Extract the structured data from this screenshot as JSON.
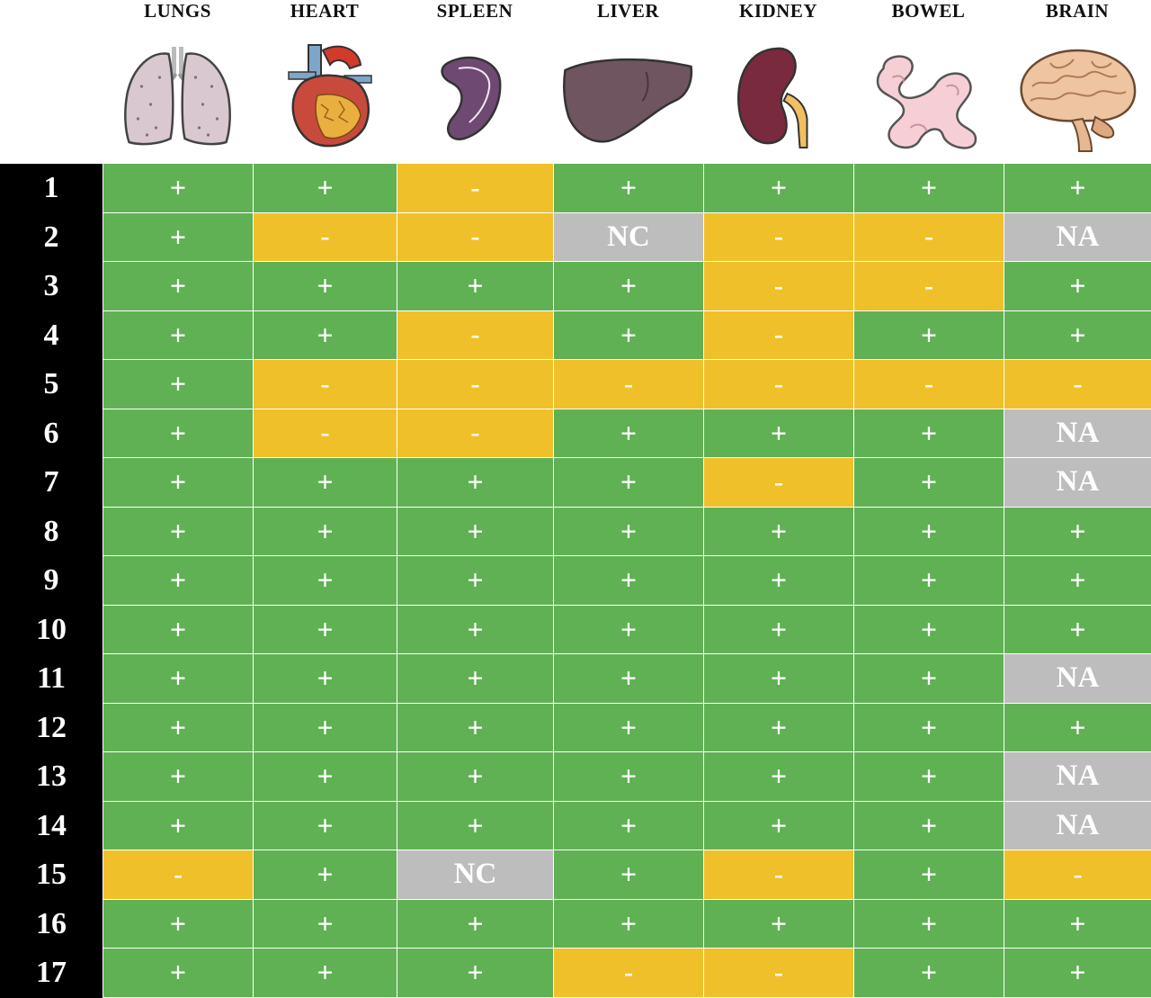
{
  "columns": [
    {
      "name": "LUNGS",
      "icon": "lungs-icon"
    },
    {
      "name": "HEART",
      "icon": "heart-icon"
    },
    {
      "name": "SPLEEN",
      "icon": "spleen-icon"
    },
    {
      "name": "LIVER",
      "icon": "liver-icon"
    },
    {
      "name": "KIDNEY",
      "icon": "kidney-icon"
    },
    {
      "name": "BOWEL",
      "icon": "bowel-icon"
    },
    {
      "name": "BRAIN",
      "icon": "brain-icon"
    }
  ],
  "colors": {
    "positive": "#5fb153",
    "negative": "#f0c02a",
    "not_available": "#bdbdbd",
    "row_label_bg": "#000000"
  },
  "rows": [
    {
      "id": "1",
      "values": [
        "+",
        "+",
        "-",
        "+",
        "+",
        "+",
        "+"
      ]
    },
    {
      "id": "2",
      "values": [
        "+",
        "-",
        "-",
        "NC",
        "-",
        "-",
        "NA"
      ]
    },
    {
      "id": "3",
      "values": [
        "+",
        "+",
        "+",
        "+",
        "-",
        "-",
        "+"
      ]
    },
    {
      "id": "4",
      "values": [
        "+",
        "+",
        "-",
        "+",
        "-",
        "+",
        "+"
      ]
    },
    {
      "id": "5",
      "values": [
        "+",
        "-",
        "-",
        "-",
        "-",
        "-",
        "-"
      ]
    },
    {
      "id": "6",
      "values": [
        "+",
        "-",
        "-",
        "+",
        "+",
        "+",
        "NA"
      ]
    },
    {
      "id": "7",
      "values": [
        "+",
        "+",
        "+",
        "+",
        "-",
        "+",
        "NA"
      ]
    },
    {
      "id": "8",
      "values": [
        "+",
        "+",
        "+",
        "+",
        "+",
        "+",
        "+"
      ]
    },
    {
      "id": "9",
      "values": [
        "+",
        "+",
        "+",
        "+",
        "+",
        "+",
        "+"
      ]
    },
    {
      "id": "10",
      "values": [
        "+",
        "+",
        "+",
        "+",
        "+",
        "+",
        "+"
      ]
    },
    {
      "id": "11",
      "values": [
        "+",
        "+",
        "+",
        "+",
        "+",
        "+",
        "NA"
      ]
    },
    {
      "id": "12",
      "values": [
        "+",
        "+",
        "+",
        "+",
        "+",
        "+",
        "+"
      ]
    },
    {
      "id": "13",
      "values": [
        "+",
        "+",
        "+",
        "+",
        "+",
        "+",
        "NA"
      ]
    },
    {
      "id": "14",
      "values": [
        "+",
        "+",
        "+",
        "+",
        "+",
        "+",
        "NA"
      ]
    },
    {
      "id": "15",
      "values": [
        "-",
        "+",
        "NC",
        "+",
        "-",
        "+",
        "-"
      ]
    },
    {
      "id": "16",
      "values": [
        "+",
        "+",
        "+",
        "+",
        "+",
        "+",
        "+"
      ]
    },
    {
      "id": "17",
      "values": [
        "+",
        "+",
        "+",
        "-",
        "-",
        "+",
        "+"
      ]
    }
  ]
}
